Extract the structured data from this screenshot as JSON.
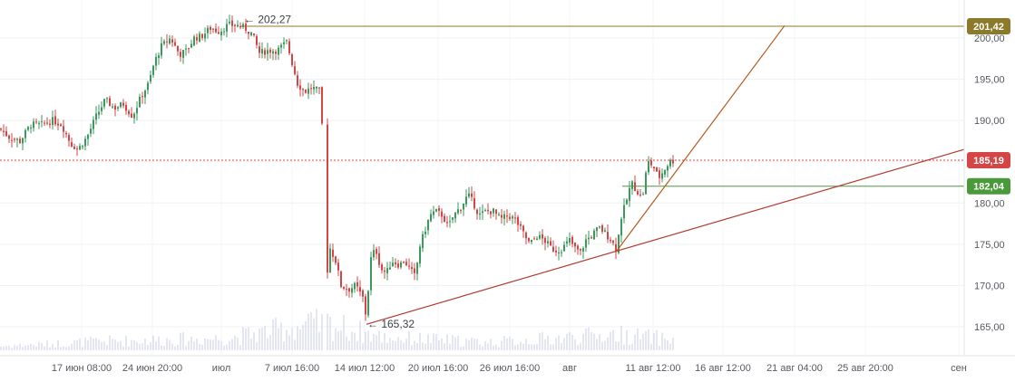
{
  "chart_data": {
    "type": "candlestick",
    "title": "",
    "xlabel": "",
    "ylabel": "",
    "ylim": [
      162.5,
      203.5
    ],
    "y_ticks": [
      "165,00",
      "170,00",
      "175,00",
      "180,00",
      "185,00",
      "190,00",
      "195,00",
      "200,00"
    ],
    "x_tick_labels": [
      "17 июн 08:00",
      "24 июн 20:00",
      "июл",
      "7 июл 16:00",
      "14 июл 12:00",
      "20 июл 16:00",
      "26 июл 16:00",
      "авг",
      "11 авг 12:00",
      "16 авг 12:00",
      "21 авг 04:00",
      "25 авг 20:00",
      "сен"
    ],
    "grid": true,
    "up_color": "#3a9a5b",
    "down_color": "#d64545",
    "volume_color": "#c9cde6",
    "close_path": [
      [
        0,
        189
      ],
      [
        10,
        188
      ],
      [
        22,
        187.5
      ],
      [
        34,
        189.5
      ],
      [
        46,
        189.5
      ],
      [
        58,
        190
      ],
      [
        68,
        189.5
      ],
      [
        78,
        187.2
      ],
      [
        86,
        186.5
      ],
      [
        96,
        188
      ],
      [
        106,
        190.5
      ],
      [
        116,
        192.5
      ],
      [
        126,
        191.5
      ],
      [
        136,
        192
      ],
      [
        146,
        190.5
      ],
      [
        156,
        193
      ],
      [
        164,
        194.5
      ],
      [
        170,
        197
      ],
      [
        178,
        199
      ],
      [
        188,
        200
      ],
      [
        198,
        198
      ],
      [
        206,
        198.5
      ],
      [
        214,
        200
      ],
      [
        222,
        200.2
      ],
      [
        232,
        201.2
      ],
      [
        242,
        200.8
      ],
      [
        252,
        201.6
      ],
      [
        262,
        201.5
      ],
      [
        270,
        201.2
      ],
      [
        278,
        200.5
      ],
      [
        286,
        198.2
      ],
      [
        296,
        198.5
      ],
      [
        306,
        198.5
      ],
      [
        316,
        199.5
      ],
      [
        322,
        197
      ],
      [
        328,
        194.5
      ],
      [
        336,
        193.5
      ],
      [
        344,
        194
      ],
      [
        352,
        193.5
      ],
      [
        355,
        189.5
      ],
      [
        360,
        171
      ],
      [
        364,
        174.5
      ],
      [
        370,
        173
      ],
      [
        376,
        170
      ],
      [
        384,
        169.5
      ],
      [
        392,
        170
      ],
      [
        400,
        168.5
      ],
      [
        404,
        166
      ],
      [
        408,
        173
      ],
      [
        414,
        174.5
      ],
      [
        420,
        172
      ],
      [
        426,
        171.5
      ],
      [
        432,
        173
      ],
      [
        440,
        172.5
      ],
      [
        446,
        173
      ],
      [
        452,
        172
      ],
      [
        458,
        171
      ],
      [
        462,
        174.5
      ],
      [
        468,
        176.5
      ],
      [
        474,
        178.5
      ],
      [
        480,
        179
      ],
      [
        488,
        178.5
      ],
      [
        494,
        177
      ],
      [
        500,
        178.5
      ],
      [
        508,
        179.5
      ],
      [
        516,
        181
      ],
      [
        522,
        180
      ],
      [
        528,
        178.5
      ],
      [
        536,
        179
      ],
      [
        544,
        179
      ],
      [
        552,
        178
      ],
      [
        560,
        178.5
      ],
      [
        568,
        178
      ],
      [
        576,
        176.5
      ],
      [
        584,
        175
      ],
      [
        592,
        176
      ],
      [
        600,
        175.5
      ],
      [
        608,
        174.5
      ],
      [
        614,
        174.2
      ],
      [
        620,
        174.5
      ],
      [
        628,
        175.5
      ],
      [
        634,
        174.5
      ],
      [
        640,
        174
      ],
      [
        646,
        175.5
      ],
      [
        652,
        176
      ],
      [
        660,
        177
      ],
      [
        666,
        176.5
      ],
      [
        674,
        175.5
      ],
      [
        680,
        174.2
      ],
      [
        684,
        178
      ],
      [
        690,
        180
      ],
      [
        696,
        182.5
      ],
      [
        702,
        181.5
      ],
      [
        708,
        180.5
      ],
      [
        714,
        185
      ],
      [
        720,
        184.5
      ],
      [
        726,
        183
      ],
      [
        732,
        184
      ],
      [
        738,
        185
      ],
      [
        744,
        185.2
      ]
    ],
    "volume_profile": [
      [
        0,
        0.15
      ],
      [
        120,
        0.35
      ],
      [
        250,
        0.45
      ],
      [
        330,
        0.9
      ],
      [
        360,
        1.0
      ],
      [
        420,
        0.5
      ],
      [
        540,
        0.3
      ],
      [
        680,
        0.6
      ],
      [
        745,
        0.4
      ]
    ],
    "annotations": [
      {
        "label": "← 202,27",
        "x": 268,
        "y": 202.27
      },
      {
        "label": "← 165,32",
        "x": 404,
        "y": 165.32
      }
    ],
    "lines": [
      {
        "name": "horizontal",
        "value": 201.42,
        "value_label": "201,42",
        "color": "#8c7a2c",
        "x_start": 265
      },
      {
        "name": "current-price",
        "value": 185.19,
        "value_label": "185,19",
        "color": "#d64545",
        "style": "dotted"
      },
      {
        "name": "horizontal",
        "value": 182.04,
        "value_label": "182,04",
        "color": "#4a9a3c",
        "x_start": 686
      }
    ],
    "trendlines": [
      {
        "color": "#b45a1e",
        "points": [
          [
            680,
            174.2
          ],
          [
            865,
            201.5
          ]
        ]
      },
      {
        "color": "#b33a2e",
        "points": [
          [
            404,
            165.3
          ],
          [
            1063,
            186.5
          ]
        ]
      }
    ]
  }
}
